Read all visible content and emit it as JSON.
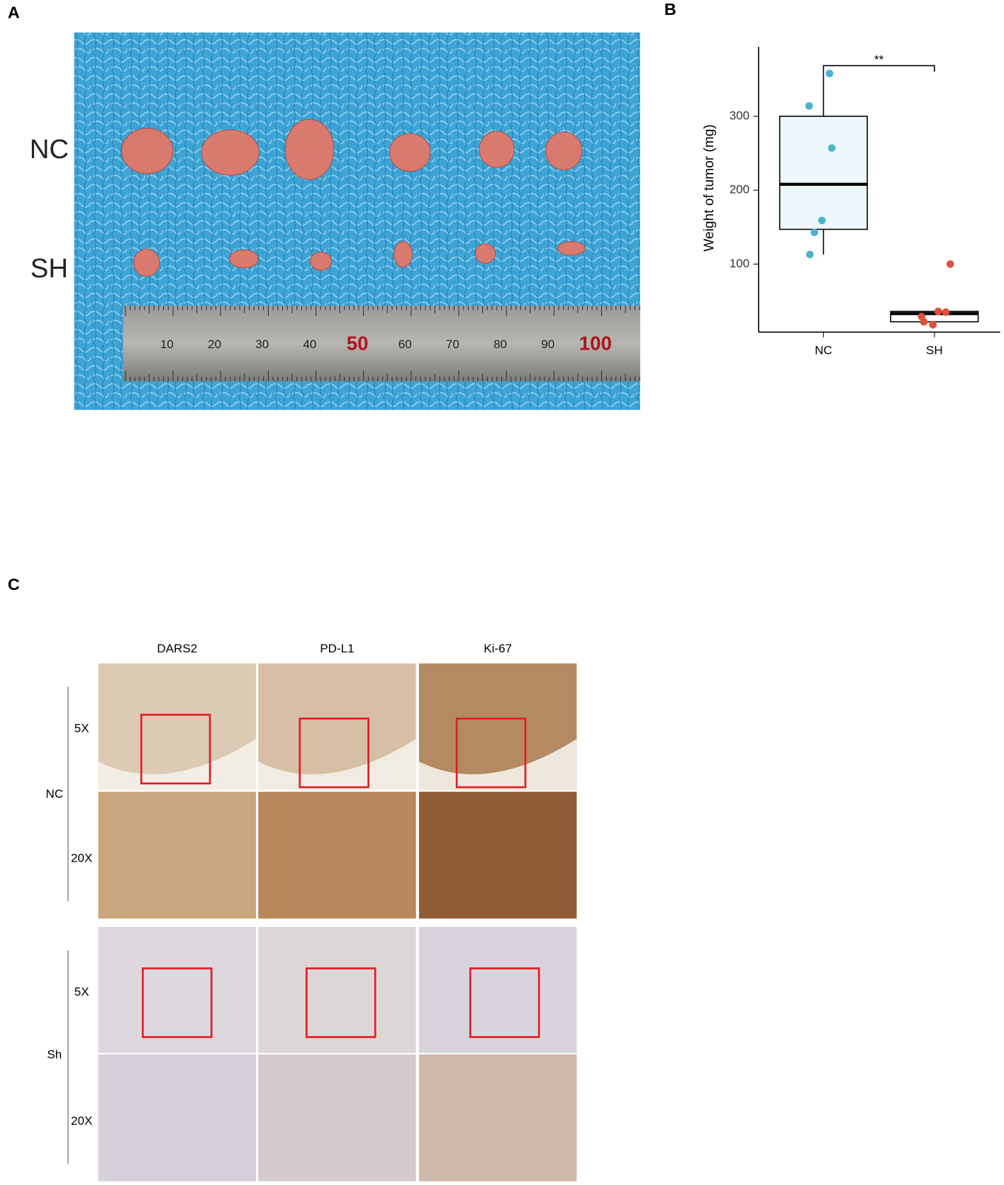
{
  "panel_labels": [
    "A",
    "B",
    "C"
  ],
  "photo": {
    "row_labels": [
      "NC",
      "SH"
    ],
    "ruler_labels": [
      "10",
      "20",
      "30",
      "40",
      "50",
      "60",
      "70",
      "80",
      "90",
      "100"
    ]
  },
  "chart_data": {
    "type": "box",
    "ylabel": "Weight of tumor (mg)",
    "categories": [
      "NC",
      "SH"
    ],
    "boxes": [
      {
        "min": 113,
        "q1": 147,
        "median": 208,
        "q3": 300,
        "max": 358
      },
      {
        "min": 18,
        "q1": 22,
        "median": 33,
        "q3": 36,
        "max": 36
      }
    ],
    "box_fill": [
      "#eef7fb",
      "#ffffff"
    ],
    "series": [
      {
        "color": "#4bb3cc",
        "values": [
          358,
          314,
          257,
          159,
          143,
          113
        ]
      },
      {
        "color": "#e0503a",
        "values": [
          100,
          36,
          35,
          29,
          22,
          18
        ]
      }
    ],
    "ylim": [
      8,
      394
    ],
    "yticks": [
      100,
      200,
      300
    ],
    "annotation": "**"
  },
  "histology": {
    "columns": [
      "DARS2",
      "PD-L1",
      "Ki-67"
    ],
    "groups": [
      {
        "name": "NC",
        "magnifications": [
          "5X",
          "20X"
        ]
      },
      {
        "name": "Sh",
        "magnifications": [
          "5X",
          "20X"
        ]
      }
    ]
  }
}
